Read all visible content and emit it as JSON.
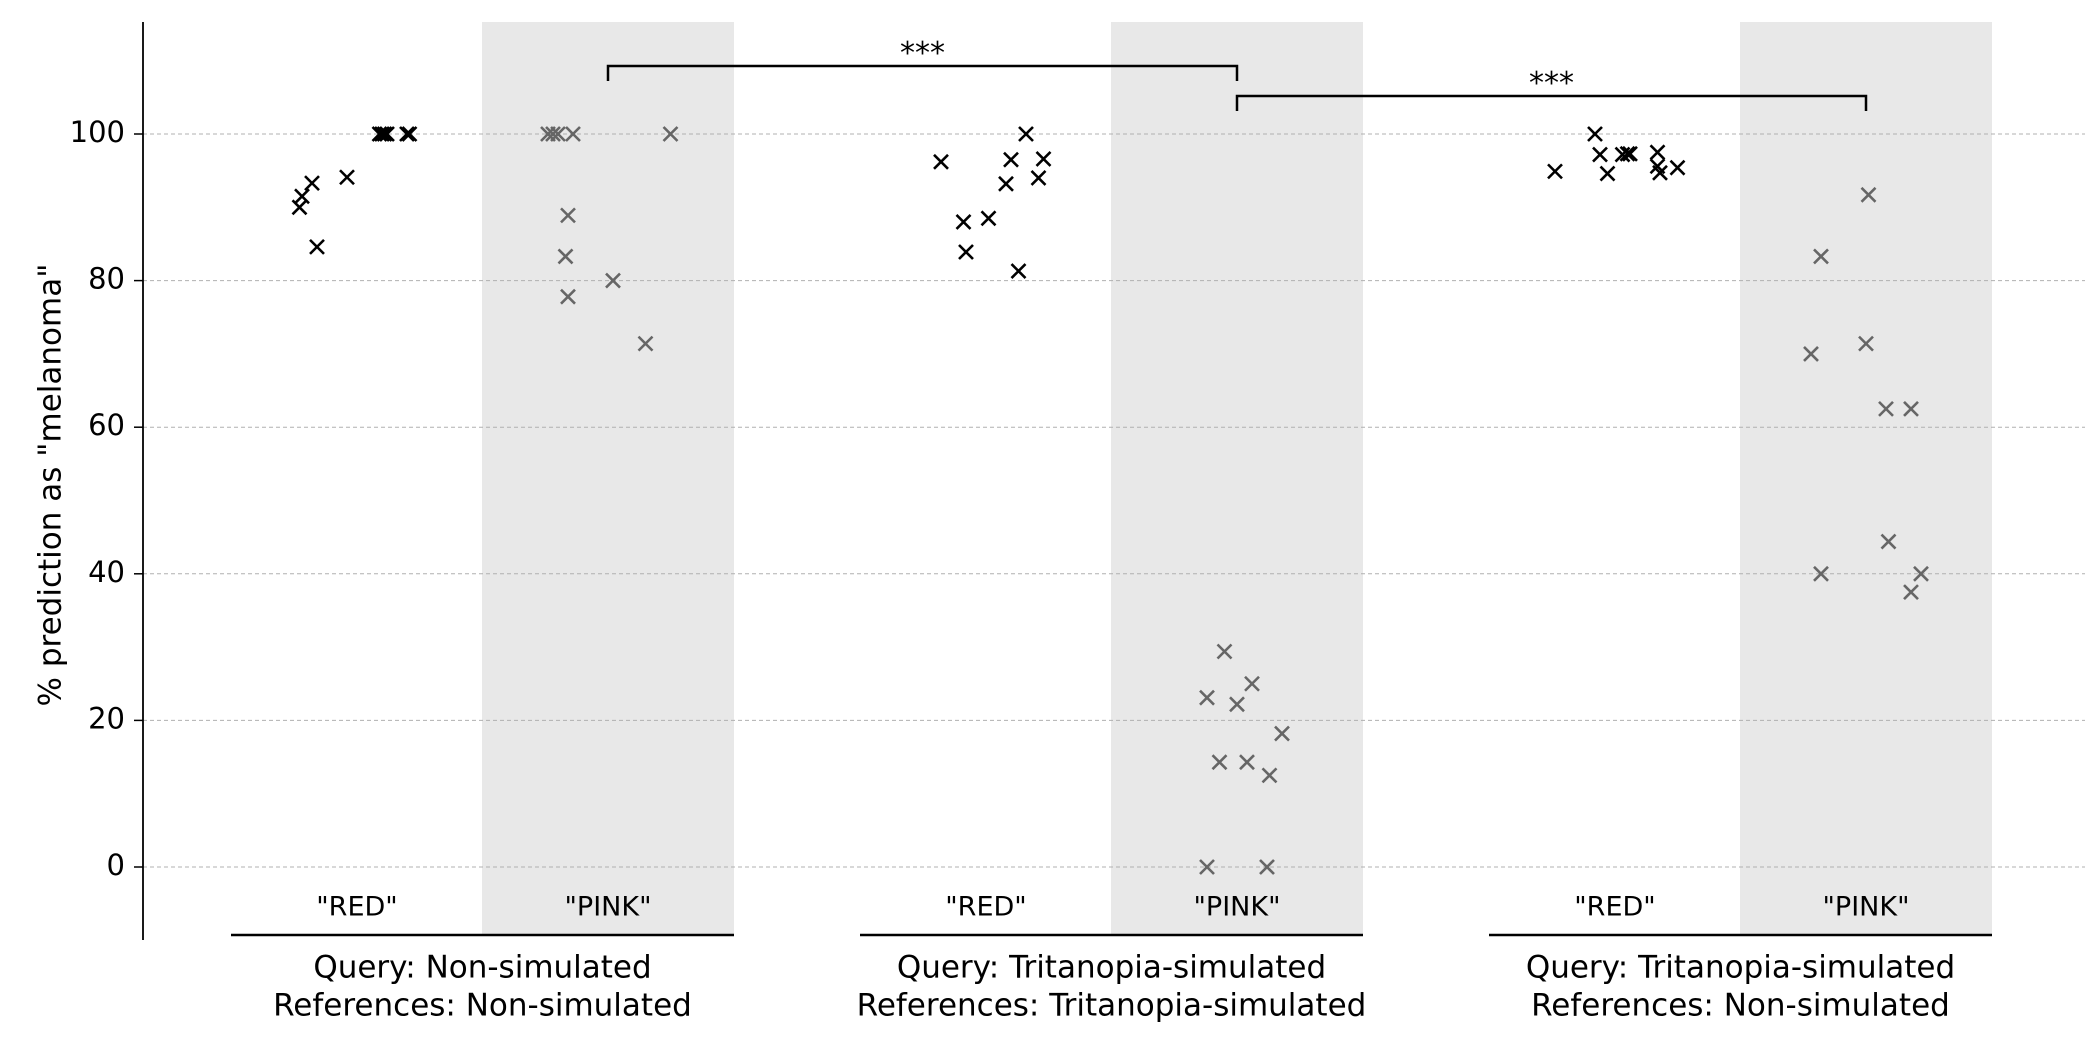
{
  "chart_data": {
    "type": "scatter",
    "title": "",
    "ylabel": "% prediction as \"melanoma\"",
    "ylim": [
      -10,
      115
    ],
    "yticks": [
      0,
      20,
      40,
      60,
      80,
      100
    ],
    "grid": "horizontal dashed at y ticks",
    "marker": "x",
    "colors": {
      "red": "#000000",
      "pink": "#666666",
      "pink_band": "#e8e8e8",
      "grid": "#b0b0b0"
    },
    "category_labels": [
      "\"RED\"",
      "\"PINK\"",
      "\"RED\"",
      "\"PINK\"",
      "\"RED\"",
      "\"PINK\""
    ],
    "groups": [
      {
        "label_line1": "Query: Non-simulated",
        "label_line2": "References: Non-simulated"
      },
      {
        "label_line1": "Query: Tritanopia-simulated",
        "label_line2": "References: Tritanopia-simulated"
      },
      {
        "label_line1": "Query: Tritanopia-simulated",
        "label_line2": "References: Non-simulated"
      }
    ],
    "series": [
      {
        "category": "\"RED\"",
        "group": 0,
        "color": "red",
        "x": [
          -0.23,
          -0.22,
          -0.18,
          -0.16,
          -0.04,
          0.09,
          0.1,
          0.11,
          0.12,
          0.2,
          0.21
        ],
        "y": [
          90,
          91.5,
          93.3,
          84.6,
          94.1,
          100,
          100,
          100,
          100,
          100,
          100
        ]
      },
      {
        "category": "\"PINK\"",
        "group": 0,
        "color": "pink",
        "x": [
          -0.24,
          -0.22,
          -0.2,
          -0.17,
          -0.16,
          -0.16,
          -0.14,
          0.02,
          0.15,
          0.25
        ],
        "y": [
          100,
          100,
          100,
          83.3,
          77.8,
          88.9,
          100,
          80,
          71.4,
          100
        ]
      },
      {
        "category": "\"RED\"",
        "group": 1,
        "color": "red",
        "x": [
          -0.18,
          -0.09,
          -0.08,
          0.01,
          0.08,
          0.1,
          0.13,
          0.16,
          0.21,
          0.23
        ],
        "y": [
          96.2,
          88,
          83.9,
          88.5,
          93.2,
          96.5,
          81.3,
          100,
          94,
          96.6
        ]
      },
      {
        "category": "\"PINK\"",
        "group": 1,
        "color": "pink",
        "x": [
          -0.12,
          -0.11,
          -0.07,
          0,
          0.04,
          0.06,
          0.07,
          0.13,
          0.18,
          -0.05
        ],
        "y": [
          23.1,
          0,
          14.3,
          22.2,
          14.3,
          25,
          0,
          12.5,
          18.2,
          29.4
        ],
        "x_correction": [
          0,
          -0.01,
          0,
          0,
          0,
          0,
          0.05,
          0,
          0,
          0
        ]
      },
      {
        "category": "\"RED\"",
        "group": 2,
        "color": "red",
        "x": [
          -0.24,
          -0.08,
          -0.06,
          -0.03,
          0.03,
          0.05,
          0.06,
          0.17,
          0.17,
          0.18,
          0.25
        ],
        "y": [
          94.9,
          100,
          97.2,
          94.6,
          97.2,
          97.3,
          97.3,
          97.5,
          95.6,
          94.7,
          95.4
        ]
      },
      {
        "category": "\"PINK\"",
        "group": 2,
        "color": "pink",
        "x": [
          -0.22,
          -0.18,
          -0.18,
          0,
          0.01,
          0.08,
          0.09,
          0.18,
          0.18,
          0.22
        ],
        "y": [
          70,
          83.3,
          40,
          71.4,
          91.7,
          62.5,
          44.4,
          62.5,
          37.5,
          40
        ]
      }
    ],
    "significance": [
      {
        "from_category": 1,
        "to_category": 3,
        "label": "***",
        "level": 1
      },
      {
        "from_category": 3,
        "to_category": 5,
        "label": "***",
        "level": 2
      }
    ]
  }
}
